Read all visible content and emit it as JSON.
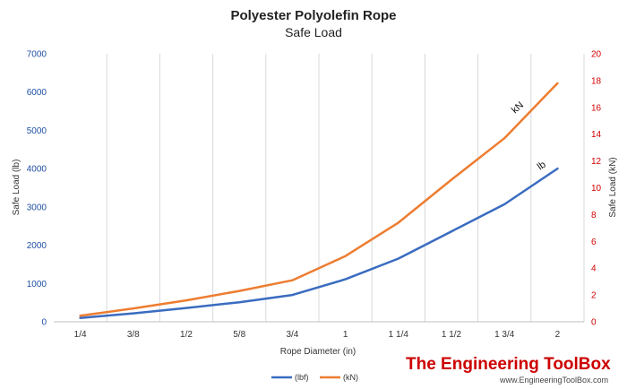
{
  "chart_data": {
    "type": "line",
    "title": "Polyester Polyolefin Rope",
    "subtitle": "Safe Load",
    "xlabel": "Rope Diameter (in)",
    "ylabel": "Safe Load (lb)",
    "y2label": "Safe Load (kN)",
    "categories": [
      "1/4",
      "3/8",
      "1/2",
      "5/8",
      "3/4",
      "1",
      "1 1/4",
      "1 1/2",
      "1 3/4",
      "2"
    ],
    "ylim": [
      0,
      7000
    ],
    "y2lim": [
      0,
      20
    ],
    "yticks": [
      "0",
      "1000",
      "2000",
      "3000",
      "4000",
      "5000",
      "6000",
      "7000"
    ],
    "y2ticks": [
      "0",
      "2",
      "4",
      "6",
      "8",
      "10",
      "12",
      "14",
      "16",
      "18",
      "20"
    ],
    "grid": "vertical",
    "legend_position": "bottom",
    "series": [
      {
        "name": "(lbf)",
        "axis": "left",
        "color": "#3a6cc0",
        "values": [
          100,
          220,
          360,
          510,
          700,
          1110,
          1650,
          2360,
          3070,
          4000
        ]
      },
      {
        "name": "(kN)",
        "axis": "right",
        "color": "#ed7d31",
        "values": [
          0.45,
          1.0,
          1.6,
          2.3,
          3.1,
          4.9,
          7.4,
          10.6,
          13.7,
          17.8
        ]
      }
    ],
    "annotations": [
      "kN",
      "lb"
    ]
  },
  "branding": {
    "logo_text": "The Engineering ToolBox",
    "logo_url": "www.EngineeringToolBox.com"
  },
  "colors": {
    "left_axis": "#1f4fa3",
    "right_axis": "#d40000",
    "grid": "#d9d9d9",
    "logo": "#cc0000"
  }
}
